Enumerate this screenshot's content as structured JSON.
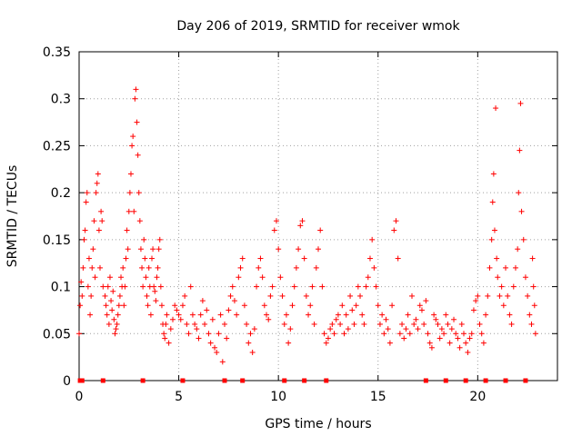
{
  "chart_data": {
    "type": "scatter",
    "title": "Day 206 of 2019, SRMTID for receiver wmok",
    "xlabel": "GPS time / hours",
    "ylabel": "SRMTID / TECUs",
    "xlim": [
      0,
      24
    ],
    "ylim": [
      0,
      0.35
    ],
    "xticks": [
      0,
      5,
      10,
      15,
      20
    ],
    "xtick_labels": [
      "0",
      "5",
      "10",
      "15",
      "20"
    ],
    "yticks": [
      0,
      0.05,
      0.1,
      0.15,
      0.2,
      0.25,
      0.3,
      0.35
    ],
    "ytick_labels": [
      "0",
      "0.05",
      "0.1",
      "0.15",
      "0.2",
      "0.25",
      "0.3",
      "0.35"
    ],
    "grid": true,
    "marker": "+",
    "color": "#ff0000",
    "baseline_markers_x": [
      0.05,
      0.15,
      1.2,
      3.2,
      5.2,
      7.3,
      8.2,
      10.3,
      11.3,
      12.4,
      17.4,
      18.4,
      19.4,
      20.4,
      21.4,
      22.4
    ],
    "series": [
      {
        "name": "SRMTID",
        "points": [
          [
            0.0,
            0.05
          ],
          [
            0.05,
            0.08
          ],
          [
            0.1,
            0.105
          ],
          [
            0.15,
            0.09
          ],
          [
            0.2,
            0.12
          ],
          [
            0.25,
            0.15
          ],
          [
            0.3,
            0.16
          ],
          [
            0.35,
            0.19
          ],
          [
            0.4,
            0.2
          ],
          [
            0.45,
            0.1
          ],
          [
            0.5,
            0.13
          ],
          [
            0.55,
            0.07
          ],
          [
            0.6,
            0.09
          ],
          [
            0.65,
            0.12
          ],
          [
            0.7,
            0.14
          ],
          [
            0.75,
            0.17
          ],
          [
            0.8,
            0.11
          ],
          [
            0.85,
            0.2
          ],
          [
            0.9,
            0.21
          ],
          [
            0.95,
            0.22
          ],
          [
            1.0,
            0.16
          ],
          [
            1.05,
            0.12
          ],
          [
            1.1,
            0.18
          ],
          [
            1.15,
            0.17
          ],
          [
            1.2,
            0.1
          ],
          [
            1.3,
            0.09
          ],
          [
            1.35,
            0.08
          ],
          [
            1.4,
            0.07
          ],
          [
            1.45,
            0.1
          ],
          [
            1.5,
            0.06
          ],
          [
            1.55,
            0.11
          ],
          [
            1.6,
            0.085
          ],
          [
            1.65,
            0.075
          ],
          [
            1.7,
            0.095
          ],
          [
            1.75,
            0.065
          ],
          [
            1.8,
            0.05
          ],
          [
            1.85,
            0.055
          ],
          [
            1.9,
            0.06
          ],
          [
            1.95,
            0.07
          ],
          [
            2.0,
            0.08
          ],
          [
            2.05,
            0.09
          ],
          [
            2.1,
            0.11
          ],
          [
            2.15,
            0.1
          ],
          [
            2.2,
            0.12
          ],
          [
            2.25,
            0.08
          ],
          [
            2.3,
            0.1
          ],
          [
            2.35,
            0.13
          ],
          [
            2.4,
            0.16
          ],
          [
            2.45,
            0.14
          ],
          [
            2.5,
            0.18
          ],
          [
            2.55,
            0.2
          ],
          [
            2.6,
            0.22
          ],
          [
            2.65,
            0.25
          ],
          [
            2.7,
            0.26
          ],
          [
            2.75,
            0.18
          ],
          [
            2.8,
            0.3
          ],
          [
            2.85,
            0.31
          ],
          [
            2.9,
            0.275
          ],
          [
            2.95,
            0.24
          ],
          [
            3.0,
            0.2
          ],
          [
            3.05,
            0.17
          ],
          [
            3.1,
            0.14
          ],
          [
            3.15,
            0.12
          ],
          [
            3.2,
            0.1
          ],
          [
            3.25,
            0.15
          ],
          [
            3.3,
            0.13
          ],
          [
            3.35,
            0.11
          ],
          [
            3.4,
            0.09
          ],
          [
            3.45,
            0.08
          ],
          [
            3.5,
            0.12
          ],
          [
            3.55,
            0.1
          ],
          [
            3.6,
            0.07
          ],
          [
            3.65,
            0.13
          ],
          [
            3.7,
            0.14
          ],
          [
            3.75,
            0.1
          ],
          [
            3.8,
            0.095
          ],
          [
            3.85,
            0.085
          ],
          [
            3.9,
            0.11
          ],
          [
            3.95,
            0.12
          ],
          [
            4.0,
            0.14
          ],
          [
            4.05,
            0.15
          ],
          [
            4.1,
            0.1
          ],
          [
            4.15,
            0.08
          ],
          [
            4.2,
            0.06
          ],
          [
            4.25,
            0.05
          ],
          [
            4.3,
            0.045
          ],
          [
            4.35,
            0.06
          ],
          [
            4.4,
            0.07
          ],
          [
            4.5,
            0.04
          ],
          [
            4.6,
            0.055
          ],
          [
            4.7,
            0.065
          ],
          [
            4.8,
            0.08
          ],
          [
            4.9,
            0.075
          ],
          [
            5.0,
            0.07
          ],
          [
            5.1,
            0.065
          ],
          [
            5.2,
            0.08
          ],
          [
            5.3,
            0.09
          ],
          [
            5.4,
            0.06
          ],
          [
            5.5,
            0.05
          ],
          [
            5.6,
            0.1
          ],
          [
            5.7,
            0.07
          ],
          [
            5.8,
            0.06
          ],
          [
            5.9,
            0.055
          ],
          [
            6.0,
            0.045
          ],
          [
            6.1,
            0.07
          ],
          [
            6.2,
            0.085
          ],
          [
            6.3,
            0.06
          ],
          [
            6.4,
            0.075
          ],
          [
            6.5,
            0.05
          ],
          [
            6.6,
            0.04
          ],
          [
            6.7,
            0.065
          ],
          [
            6.8,
            0.035
          ],
          [
            6.9,
            0.03
          ],
          [
            7.0,
            0.05
          ],
          [
            7.1,
            0.07
          ],
          [
            7.2,
            0.02
          ],
          [
            7.3,
            0.06
          ],
          [
            7.4,
            0.045
          ],
          [
            7.5,
            0.075
          ],
          [
            7.6,
            0.09
          ],
          [
            7.7,
            0.1
          ],
          [
            7.8,
            0.085
          ],
          [
            7.9,
            0.07
          ],
          [
            8.0,
            0.11
          ],
          [
            8.1,
            0.12
          ],
          [
            8.2,
            0.13
          ],
          [
            8.3,
            0.08
          ],
          [
            8.4,
            0.06
          ],
          [
            8.5,
            0.04
          ],
          [
            8.6,
            0.05
          ],
          [
            8.7,
            0.03
          ],
          [
            8.8,
            0.055
          ],
          [
            8.9,
            0.1
          ],
          [
            9.0,
            0.12
          ],
          [
            9.1,
            0.13
          ],
          [
            9.2,
            0.11
          ],
          [
            9.3,
            0.08
          ],
          [
            9.4,
            0.07
          ],
          [
            9.5,
            0.065
          ],
          [
            9.6,
            0.09
          ],
          [
            9.7,
            0.1
          ],
          [
            9.8,
            0.16
          ],
          [
            9.9,
            0.17
          ],
          [
            10.0,
            0.14
          ],
          [
            10.1,
            0.11
          ],
          [
            10.2,
            0.09
          ],
          [
            10.3,
            0.06
          ],
          [
            10.4,
            0.07
          ],
          [
            10.5,
            0.04
          ],
          [
            10.6,
            0.055
          ],
          [
            10.7,
            0.08
          ],
          [
            10.8,
            0.1
          ],
          [
            10.9,
            0.12
          ],
          [
            11.0,
            0.14
          ],
          [
            11.1,
            0.165
          ],
          [
            11.2,
            0.17
          ],
          [
            11.3,
            0.13
          ],
          [
            11.4,
            0.09
          ],
          [
            11.5,
            0.07
          ],
          [
            11.6,
            0.08
          ],
          [
            11.7,
            0.1
          ],
          [
            11.8,
            0.06
          ],
          [
            11.9,
            0.12
          ],
          [
            12.0,
            0.14
          ],
          [
            12.1,
            0.16
          ],
          [
            12.2,
            0.1
          ],
          [
            12.3,
            0.05
          ],
          [
            12.4,
            0.04
          ],
          [
            12.5,
            0.045
          ],
          [
            12.6,
            0.055
          ],
          [
            12.7,
            0.06
          ],
          [
            12.8,
            0.05
          ],
          [
            12.9,
            0.065
          ],
          [
            13.0,
            0.07
          ],
          [
            13.1,
            0.06
          ],
          [
            13.2,
            0.08
          ],
          [
            13.3,
            0.05
          ],
          [
            13.4,
            0.07
          ],
          [
            13.5,
            0.055
          ],
          [
            13.6,
            0.09
          ],
          [
            13.7,
            0.075
          ],
          [
            13.8,
            0.06
          ],
          [
            13.9,
            0.08
          ],
          [
            14.0,
            0.1
          ],
          [
            14.1,
            0.09
          ],
          [
            14.2,
            0.07
          ],
          [
            14.3,
            0.06
          ],
          [
            14.4,
            0.1
          ],
          [
            14.5,
            0.11
          ],
          [
            14.6,
            0.13
          ],
          [
            14.7,
            0.15
          ],
          [
            14.8,
            0.12
          ],
          [
            14.9,
            0.1
          ],
          [
            15.0,
            0.08
          ],
          [
            15.1,
            0.06
          ],
          [
            15.2,
            0.07
          ],
          [
            15.3,
            0.05
          ],
          [
            15.4,
            0.065
          ],
          [
            15.5,
            0.055
          ],
          [
            15.6,
            0.04
          ],
          [
            15.7,
            0.08
          ],
          [
            15.8,
            0.16
          ],
          [
            15.9,
            0.17
          ],
          [
            16.0,
            0.13
          ],
          [
            16.1,
            0.05
          ],
          [
            16.2,
            0.06
          ],
          [
            16.3,
            0.045
          ],
          [
            16.4,
            0.055
          ],
          [
            16.5,
            0.07
          ],
          [
            16.6,
            0.05
          ],
          [
            16.7,
            0.09
          ],
          [
            16.8,
            0.06
          ],
          [
            16.9,
            0.065
          ],
          [
            17.0,
            0.055
          ],
          [
            17.1,
            0.08
          ],
          [
            17.2,
            0.075
          ],
          [
            17.3,
            0.06
          ],
          [
            17.4,
            0.085
          ],
          [
            17.5,
            0.05
          ],
          [
            17.6,
            0.04
          ],
          [
            17.7,
            0.035
          ],
          [
            17.8,
            0.07
          ],
          [
            17.9,
            0.065
          ],
          [
            18.0,
            0.06
          ],
          [
            18.1,
            0.045
          ],
          [
            18.2,
            0.055
          ],
          [
            18.3,
            0.05
          ],
          [
            18.4,
            0.07
          ],
          [
            18.5,
            0.06
          ],
          [
            18.6,
            0.04
          ],
          [
            18.7,
            0.055
          ],
          [
            18.8,
            0.065
          ],
          [
            18.9,
            0.05
          ],
          [
            19.0,
            0.045
          ],
          [
            19.1,
            0.035
          ],
          [
            19.2,
            0.06
          ],
          [
            19.3,
            0.05
          ],
          [
            19.4,
            0.04
          ],
          [
            19.5,
            0.03
          ],
          [
            19.6,
            0.045
          ],
          [
            19.7,
            0.05
          ],
          [
            19.8,
            0.075
          ],
          [
            19.9,
            0.085
          ],
          [
            20.0,
            0.09
          ],
          [
            20.1,
            0.06
          ],
          [
            20.2,
            0.05
          ],
          [
            20.3,
            0.04
          ],
          [
            20.4,
            0.07
          ],
          [
            20.5,
            0.09
          ],
          [
            20.6,
            0.12
          ],
          [
            20.7,
            0.15
          ],
          [
            20.75,
            0.19
          ],
          [
            20.8,
            0.22
          ],
          [
            20.85,
            0.16
          ],
          [
            20.9,
            0.29
          ],
          [
            20.95,
            0.13
          ],
          [
            21.0,
            0.11
          ],
          [
            21.1,
            0.09
          ],
          [
            21.2,
            0.1
          ],
          [
            21.3,
            0.08
          ],
          [
            21.4,
            0.12
          ],
          [
            21.5,
            0.09
          ],
          [
            21.6,
            0.07
          ],
          [
            21.7,
            0.06
          ],
          [
            21.8,
            0.1
          ],
          [
            21.9,
            0.12
          ],
          [
            22.0,
            0.14
          ],
          [
            22.05,
            0.2
          ],
          [
            22.1,
            0.245
          ],
          [
            22.15,
            0.295
          ],
          [
            22.2,
            0.18
          ],
          [
            22.3,
            0.15
          ],
          [
            22.4,
            0.11
          ],
          [
            22.5,
            0.09
          ],
          [
            22.6,
            0.07
          ],
          [
            22.7,
            0.06
          ],
          [
            22.75,
            0.13
          ],
          [
            22.8,
            0.1
          ],
          [
            22.85,
            0.08
          ],
          [
            22.9,
            0.05
          ]
        ]
      }
    ]
  }
}
